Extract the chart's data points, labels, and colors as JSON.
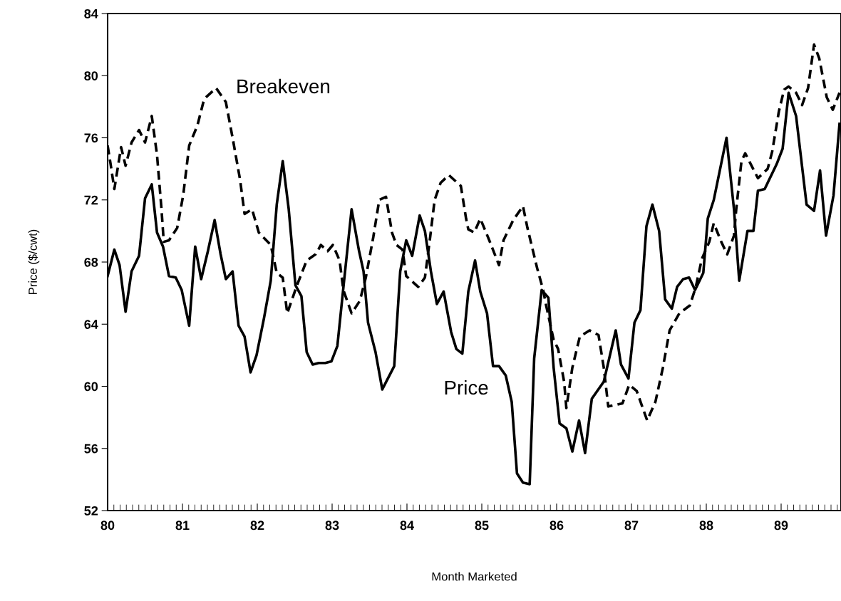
{
  "chart_data": {
    "type": "line",
    "xlabel": "Month Marketed",
    "ylabel": "Price ($/cwt)",
    "xlim": [
      80,
      89.8
    ],
    "xticks": [
      80,
      81,
      82,
      83,
      84,
      85,
      86,
      87,
      88,
      89
    ],
    "ylim": [
      52,
      84
    ],
    "yticks": [
      52,
      56,
      60,
      64,
      68,
      72,
      76,
      80,
      84
    ],
    "grid": false,
    "marker": "none",
    "series": [
      {
        "name": "Price",
        "color": "#000000",
        "line_style": "solid",
        "x": [
          80.0,
          80.09,
          80.16,
          80.24,
          80.32,
          80.42,
          80.5,
          80.59,
          80.66,
          80.74,
          80.82,
          80.91,
          80.99,
          81.09,
          81.17,
          81.25,
          81.34,
          81.43,
          81.51,
          81.58,
          81.67,
          81.75,
          81.83,
          81.91,
          81.99,
          82.09,
          82.18,
          82.26,
          82.34,
          82.42,
          82.51,
          82.59,
          82.66,
          82.74,
          82.82,
          82.91,
          82.99,
          83.07,
          83.16,
          83.26,
          83.36,
          83.42,
          83.48,
          83.58,
          83.67,
          83.83,
          83.91,
          83.99,
          84.07,
          84.17,
          84.24,
          84.32,
          84.4,
          84.49,
          84.59,
          84.66,
          84.74,
          84.82,
          84.91,
          84.98,
          85.07,
          85.15,
          85.23,
          85.32,
          85.4,
          85.47,
          85.55,
          85.64,
          85.7,
          85.8,
          85.89,
          85.96,
          86.04,
          86.13,
          86.21,
          86.3,
          86.38,
          86.47,
          86.63,
          86.79,
          86.86,
          86.96,
          87.04,
          87.12,
          87.2,
          87.28,
          87.37,
          87.45,
          87.54,
          87.61,
          87.69,
          87.77,
          87.85,
          87.96,
          88.02,
          88.1,
          88.27,
          88.37,
          88.44,
          88.55,
          88.63,
          88.69,
          88.78,
          88.94,
          89.02,
          89.1,
          89.2,
          89.34,
          89.44,
          89.52,
          89.6,
          89.7,
          89.78
        ],
        "values": [
          67.1,
          68.8,
          67.8,
          64.8,
          67.4,
          68.4,
          72.1,
          73.0,
          69.9,
          69.0,
          67.1,
          67.0,
          66.2,
          63.9,
          69.0,
          66.9,
          68.7,
          70.7,
          68.5,
          66.9,
          67.4,
          63.9,
          63.2,
          60.9,
          62.0,
          64.4,
          66.8,
          71.7,
          74.5,
          71.4,
          66.5,
          65.8,
          62.2,
          61.4,
          61.5,
          61.5,
          61.6,
          62.6,
          66.8,
          71.4,
          68.7,
          67.4,
          64.1,
          62.2,
          59.8,
          61.3,
          67.4,
          69.4,
          68.4,
          71.0,
          70.0,
          67.4,
          65.3,
          66.1,
          63.5,
          62.4,
          62.1,
          66.1,
          68.1,
          66.1,
          64.7,
          61.3,
          61.3,
          60.7,
          59.0,
          54.4,
          53.8,
          53.7,
          61.8,
          66.2,
          65.7,
          61.2,
          57.6,
          57.3,
          55.8,
          57.8,
          55.7,
          59.2,
          60.3,
          63.6,
          61.4,
          60.5,
          64.1,
          64.9,
          70.3,
          71.7,
          70.0,
          65.6,
          65.0,
          66.4,
          66.9,
          67.0,
          66.2,
          67.3,
          70.8,
          72.0,
          76.0,
          71.4,
          66.8,
          70.0,
          70.0,
          72.6,
          72.7,
          74.3,
          75.3,
          78.9,
          77.4,
          71.7,
          71.3,
          73.9,
          69.7,
          72.3,
          76.9
        ]
      },
      {
        "name": "Breakeven",
        "color": "#000000",
        "line_style": "dashed",
        "x": [
          80.0,
          80.04,
          80.09,
          80.13,
          80.18,
          80.24,
          80.32,
          80.42,
          80.5,
          80.59,
          80.66,
          80.72,
          80.75,
          80.82,
          80.93,
          81.01,
          81.09,
          81.2,
          81.29,
          81.45,
          81.58,
          81.67,
          81.77,
          81.83,
          81.93,
          82.02,
          82.18,
          82.26,
          82.34,
          82.4,
          82.53,
          82.66,
          82.78,
          82.85,
          82.94,
          83.01,
          83.1,
          83.15,
          83.26,
          83.37,
          83.45,
          83.55,
          83.63,
          83.72,
          83.8,
          83.86,
          83.94,
          83.99,
          84.15,
          84.24,
          84.31,
          84.37,
          84.45,
          84.56,
          84.72,
          84.79,
          84.82,
          84.9,
          84.98,
          85.1,
          85.23,
          85.29,
          85.42,
          85.55,
          85.61,
          85.74,
          85.82,
          85.86,
          85.96,
          86.02,
          86.1,
          86.13,
          86.21,
          86.31,
          86.44,
          86.56,
          86.63,
          86.69,
          86.88,
          86.97,
          87.07,
          87.21,
          87.32,
          87.42,
          87.51,
          87.64,
          87.78,
          87.86,
          87.94,
          88.04,
          88.1,
          88.2,
          88.28,
          88.37,
          88.4,
          88.47,
          88.52,
          88.69,
          88.82,
          88.88,
          88.97,
          89.04,
          89.1,
          89.2,
          89.28,
          89.36,
          89.44,
          89.51,
          89.61,
          89.69,
          89.78
        ],
        "values": [
          75.5,
          74.3,
          72.7,
          73.9,
          75.4,
          74.2,
          75.7,
          76.5,
          75.7,
          77.4,
          74.9,
          71.4,
          69.3,
          69.4,
          70.2,
          72.3,
          75.5,
          76.8,
          78.5,
          79.2,
          78.3,
          76.0,
          73.3,
          71.1,
          71.4,
          69.9,
          69.1,
          67.3,
          67.0,
          64.7,
          66.5,
          68.1,
          68.5,
          69.1,
          68.7,
          69.1,
          68.1,
          66.2,
          64.7,
          65.5,
          67.0,
          69.6,
          72.0,
          72.2,
          69.9,
          69.1,
          68.8,
          67.1,
          66.4,
          67.0,
          69.6,
          72.0,
          73.1,
          73.6,
          72.9,
          70.8,
          70.1,
          69.9,
          70.8,
          69.4,
          67.8,
          69.4,
          70.7,
          71.6,
          70.2,
          67.6,
          66.2,
          65.2,
          63.0,
          62.4,
          60.3,
          58.6,
          61.2,
          63.2,
          63.6,
          63.3,
          61.2,
          58.7,
          58.9,
          60.1,
          59.7,
          57.8,
          59.0,
          61.2,
          63.6,
          64.7,
          65.2,
          66.4,
          68.2,
          69.3,
          70.5,
          69.3,
          68.5,
          69.7,
          71.4,
          74.5,
          75.0,
          73.4,
          74.0,
          75.1,
          77.7,
          79.1,
          79.3,
          78.9,
          78.1,
          79.2,
          82.0,
          81.1,
          78.6,
          77.8,
          78.9
        ]
      }
    ]
  }
}
